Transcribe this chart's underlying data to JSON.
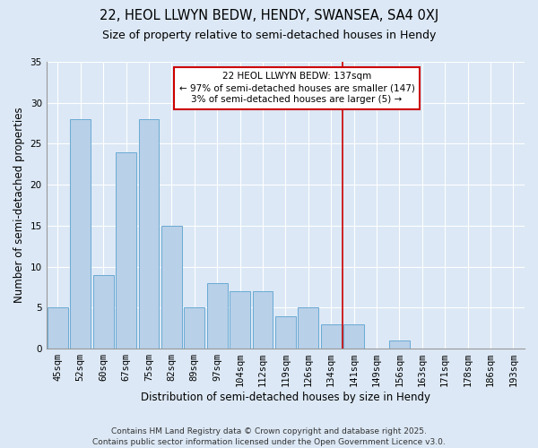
{
  "title": "22, HEOL LLWYN BEDW, HENDY, SWANSEA, SA4 0XJ",
  "subtitle": "Size of property relative to semi-detached houses in Hendy",
  "xlabel": "Distribution of semi-detached houses by size in Hendy",
  "ylabel": "Number of semi-detached properties",
  "categories": [
    "45sqm",
    "52sqm",
    "60sqm",
    "67sqm",
    "75sqm",
    "82sqm",
    "89sqm",
    "97sqm",
    "104sqm",
    "112sqm",
    "119sqm",
    "126sqm",
    "134sqm",
    "141sqm",
    "149sqm",
    "156sqm",
    "163sqm",
    "171sqm",
    "178sqm",
    "186sqm",
    "193sqm"
  ],
  "values": [
    5,
    28,
    9,
    24,
    28,
    15,
    5,
    8,
    7,
    7,
    4,
    5,
    3,
    3,
    0,
    1,
    0,
    0,
    0,
    0,
    0
  ],
  "bar_color": "#b8d0e8",
  "bar_edge_color": "#6aaad4",
  "vline_x": 12.5,
  "vline_color": "#cc0000",
  "annotation_text": "22 HEOL LLWYN BEDW: 137sqm\n← 97% of semi-detached houses are smaller (147)\n3% of semi-detached houses are larger (5) →",
  "annotation_box_color": "#cc0000",
  "ylim": [
    0,
    35
  ],
  "yticks": [
    0,
    5,
    10,
    15,
    20,
    25,
    30,
    35
  ],
  "footer_text": "Contains HM Land Registry data © Crown copyright and database right 2025.\nContains public sector information licensed under the Open Government Licence v3.0.",
  "background_color": "#dce8f5",
  "grid_color": "#ffffff",
  "title_fontsize": 10.5,
  "subtitle_fontsize": 9,
  "label_fontsize": 8.5,
  "tick_fontsize": 7.5,
  "footer_fontsize": 6.5,
  "annotation_fontsize": 7.5
}
